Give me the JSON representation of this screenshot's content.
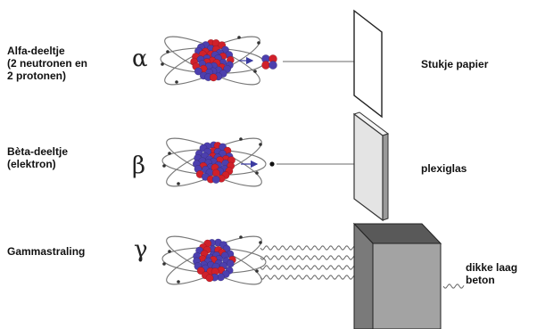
{
  "rows": [
    {
      "label_lines": [
        "Alfa-deeltje",
        "(2 neutronen en",
        "2 protonen)"
      ],
      "symbol": "α",
      "material": "Stukje papier"
    },
    {
      "label_lines": [
        "Bèta-deeltje",
        "(elektron)"
      ],
      "symbol": "β",
      "material": "plexiglas"
    },
    {
      "label_lines": [
        "Gammastraling"
      ],
      "symbol": "γ",
      "material_lines": [
        "dikke laag",
        "beton"
      ]
    }
  ],
  "colors": {
    "proton": "#d0202a",
    "neutron": "#4c3fae",
    "orbit": "#777777",
    "concrete_front": "#a3a3a3",
    "concrete_top": "#595959",
    "concrete_side": "#7a7a7a",
    "plexiglas": "#e4e4e4"
  }
}
